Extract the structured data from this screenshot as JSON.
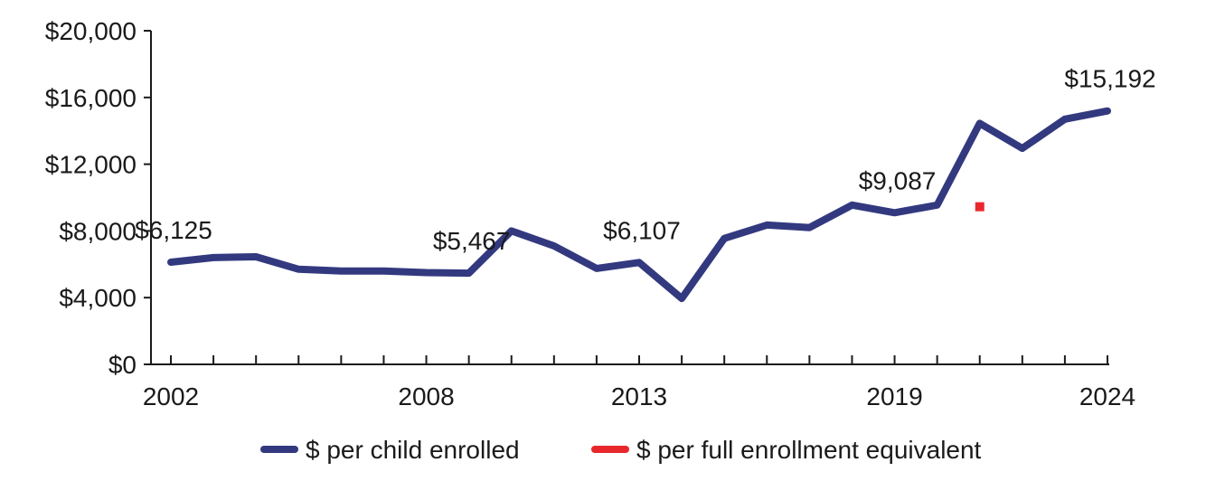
{
  "chart_data": {
    "type": "line",
    "x": [
      2002,
      2003,
      2004,
      2005,
      2006,
      2007,
      2008,
      2009,
      2010,
      2011,
      2012,
      2013,
      2014,
      2015,
      2016,
      2017,
      2018,
      2019,
      2020,
      2021,
      2022,
      2023,
      2024
    ],
    "x_tick_labels": [
      "2002",
      "2008",
      "2013",
      "2019",
      "2024"
    ],
    "x_tick_values": [
      2002,
      2008,
      2013,
      2019,
      2024
    ],
    "y_tick_labels": [
      "$0",
      "$4,000",
      "$8,000",
      "$12,000",
      "$16,000",
      "$20,000"
    ],
    "y_tick_values": [
      0,
      4000,
      8000,
      12000,
      16000,
      20000
    ],
    "ylim": [
      0,
      20000
    ],
    "grid": false,
    "legend_position": "bottom",
    "series": [
      {
        "name": "$ per child enrolled",
        "color": "#33397f",
        "style": "line",
        "values": [
          6125,
          6400,
          6450,
          5700,
          5600,
          5600,
          5500,
          5467,
          8000,
          7100,
          5750,
          6107,
          3950,
          7550,
          8350,
          8200,
          9550,
          9087,
          9550,
          14450,
          12950,
          14700,
          15192
        ]
      },
      {
        "name": "$ per full enrollment equivalent",
        "color": "#e8272c",
        "style": "marker",
        "points": [
          {
            "x": 2021,
            "y": 9450
          }
        ]
      }
    ],
    "annotations": [
      {
        "x": 2002,
        "y": 6125,
        "text": "$6,125"
      },
      {
        "x": 2009,
        "y": 5467,
        "text": "$5,467"
      },
      {
        "x": 2013,
        "y": 6107,
        "text": "$6,107"
      },
      {
        "x": 2019,
        "y": 9087,
        "text": "$9,087"
      },
      {
        "x": 2024,
        "y": 15192,
        "text": "$15,192"
      }
    ]
  }
}
